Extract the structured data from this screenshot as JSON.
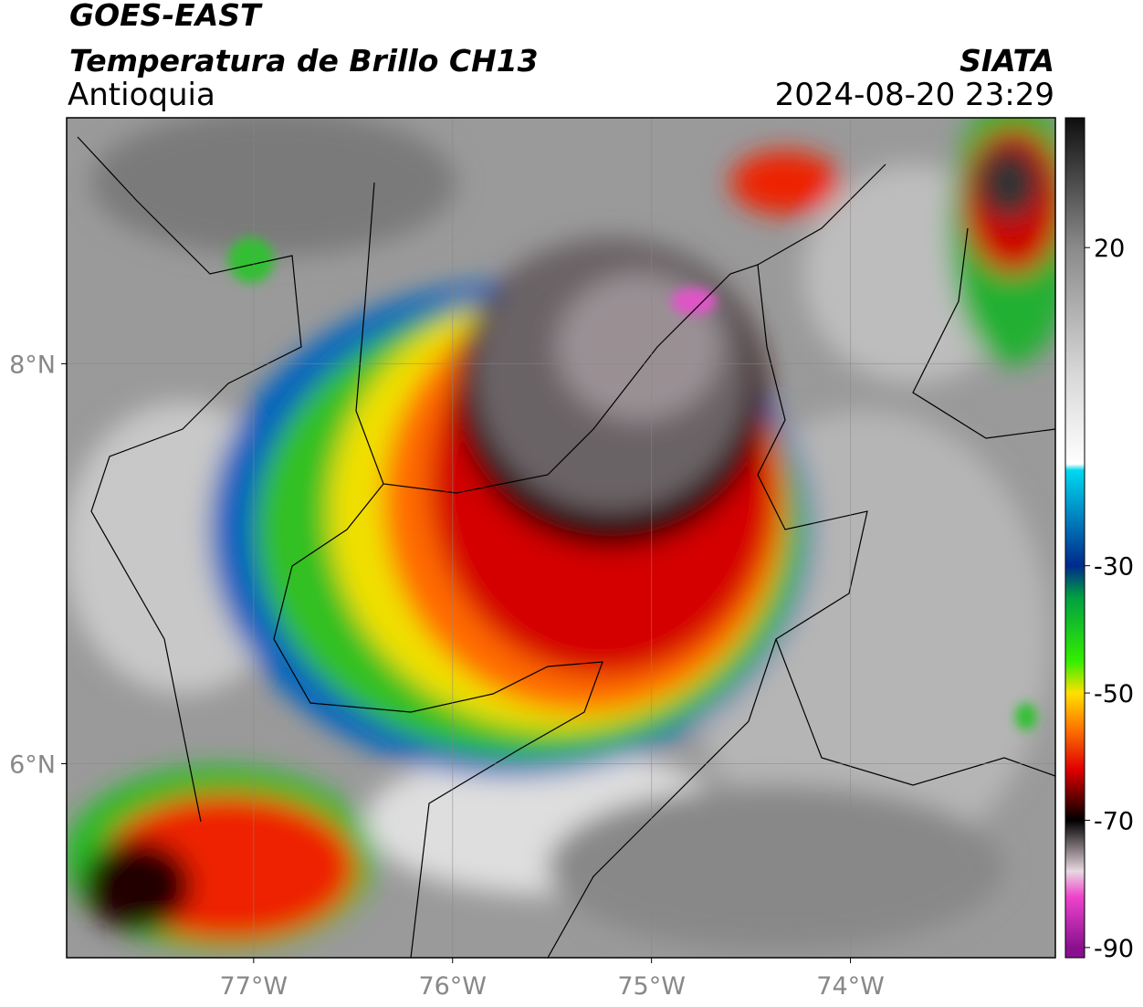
{
  "map": {
    "title": "GOES-EAST",
    "subtitle": "Temperatura de Brillo CH13",
    "region": "Antioquia",
    "source": "SIATA",
    "datetime": "2024-08-20 23:29",
    "xlim": [
      -77.94,
      -72.97
    ],
    "ylim": [
      5.03,
      9.23
    ],
    "xticks": [
      {
        "value": -77,
        "label": "77°W"
      },
      {
        "value": -76,
        "label": "76°W"
      },
      {
        "value": -75,
        "label": "75°W"
      },
      {
        "value": -74,
        "label": "74°W"
      }
    ],
    "yticks": [
      {
        "value": 8,
        "label": "8°N"
      },
      {
        "value": 6,
        "label": "6°N"
      }
    ],
    "grid": true,
    "colorbar": {
      "clim": [
        -91.6,
        40.4
      ],
      "ticks": [
        20,
        -30,
        -50,
        -70,
        -90
      ],
      "stops": [
        {
          "value": 40,
          "color": "#111111"
        },
        {
          "value": 20,
          "color": "#8a8a8a"
        },
        {
          "value": 0,
          "color": "#d8d8d8"
        },
        {
          "value": -14,
          "color": "#ffffff"
        },
        {
          "value": -15,
          "color": "#00d8f0"
        },
        {
          "value": -30,
          "color": "#002a8c"
        },
        {
          "value": -35,
          "color": "#00a040"
        },
        {
          "value": -45,
          "color": "#33ee00"
        },
        {
          "value": -50,
          "color": "#ffe000"
        },
        {
          "value": -55,
          "color": "#ff8000"
        },
        {
          "value": -62,
          "color": "#e00000"
        },
        {
          "value": -70,
          "color": "#000000"
        },
        {
          "value": -78,
          "color": "#e8d8e0"
        },
        {
          "value": -82,
          "color": "#ee44cc"
        },
        {
          "value": -90,
          "color": "#8a1090"
        }
      ]
    }
  }
}
